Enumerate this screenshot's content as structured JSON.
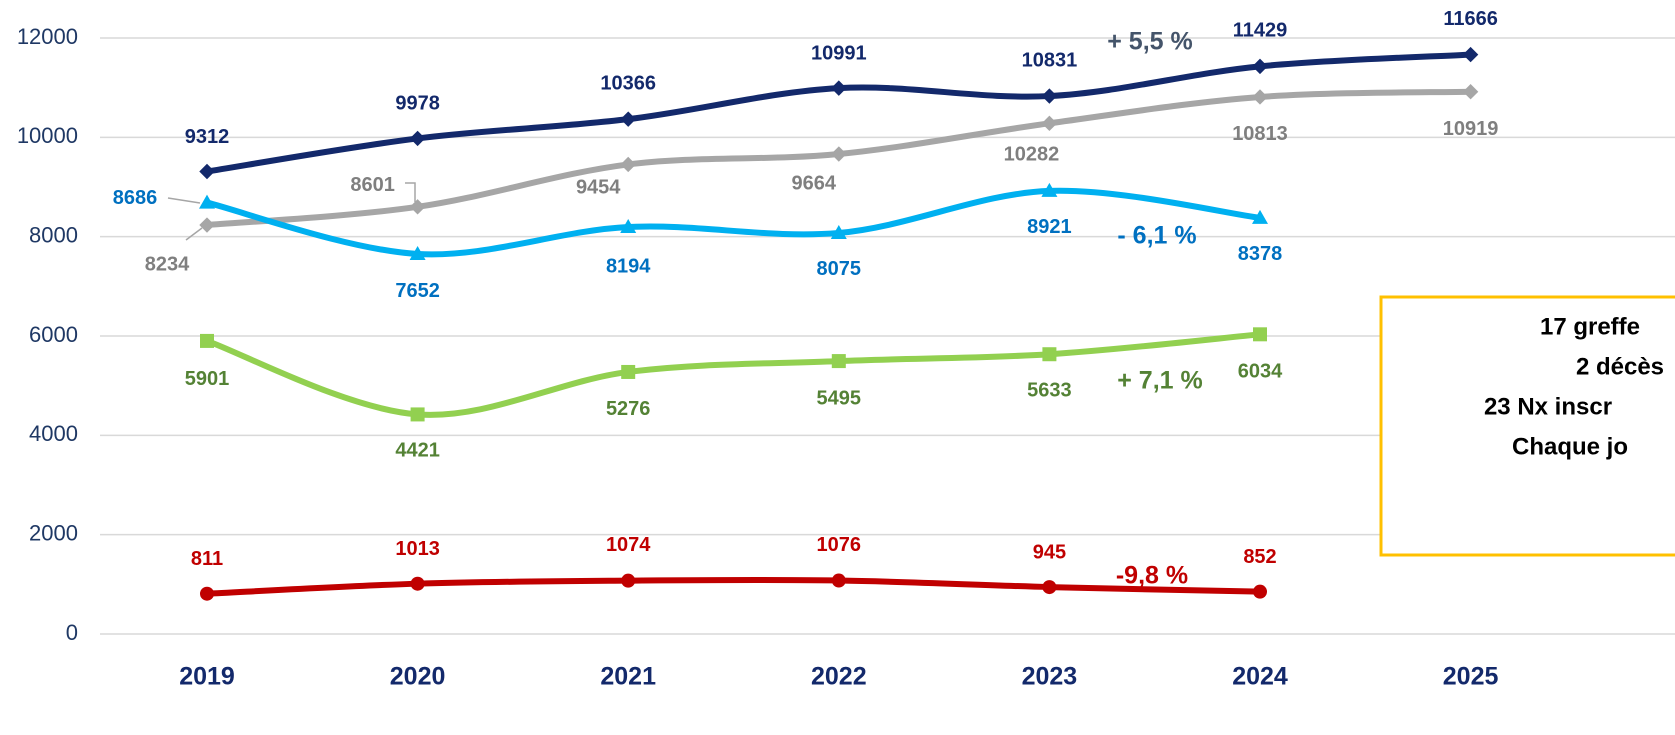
{
  "chart_data": {
    "type": "line",
    "categories": [
      "2019",
      "2020",
      "2021",
      "2022",
      "2023",
      "2024",
      "2025"
    ],
    "series": [
      {
        "color": "#13296b",
        "marker": "diamond",
        "values": [
          9312,
          9978,
          10366,
          10991,
          10831,
          11429,
          11666
        ]
      },
      {
        "color": "#a6a6a6",
        "label_color": "#7f7f7f",
        "marker": "diamond",
        "values": [
          8234,
          8601,
          9454,
          9664,
          10282,
          10813,
          10919
        ]
      },
      {
        "color": "#00b0f0",
        "label_color": "#0070c0",
        "marker": "triangle",
        "values": [
          8686,
          7652,
          8194,
          8075,
          8921,
          8378,
          null
        ]
      },
      {
        "color": "#92d050",
        "label_color": "#548235",
        "marker": "square",
        "values": [
          5901,
          4421,
          5276,
          5495,
          5633,
          6034,
          null
        ]
      },
      {
        "color": "#c00000",
        "label_color": "#c00000",
        "marker": "circle",
        "values": [
          811,
          1013,
          1074,
          1076,
          945,
          852,
          null
        ]
      }
    ],
    "ylim": [
      0,
      12000
    ],
    "yticks": [
      0,
      2000,
      4000,
      6000,
      8000,
      10000,
      12000
    ],
    "grid": true,
    "annotations": [
      {
        "text": "+ 5,5 %",
        "color": "#44546a"
      },
      {
        "text": "- 6,1 %",
        "color": "#0070c0"
      },
      {
        "text": "+ 7,1 %",
        "color": "#548235"
      },
      {
        "text": "-9,8 %",
        "color": "#c00000"
      }
    ],
    "text_box": [
      "17 greffe",
      "2 décès",
      "23 Nx inscr",
      "Chaque jo"
    ]
  }
}
